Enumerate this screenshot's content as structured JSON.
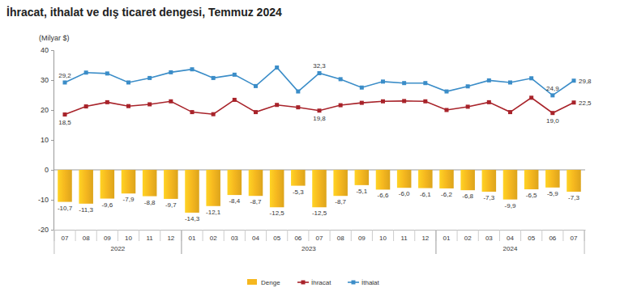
{
  "chart_data": {
    "type": "bar",
    "title": "İhracat, ithalat ve dış ticaret dengesi, Temmuz 2024",
    "y_label": "(Milyar $)",
    "categories": [
      "07",
      "08",
      "09",
      "10",
      "11",
      "12",
      "01",
      "02",
      "03",
      "04",
      "05",
      "06",
      "07",
      "08",
      "09",
      "10",
      "11",
      "12",
      "01",
      "02",
      "03",
      "04",
      "05",
      "06",
      "07"
    ],
    "category_groups": [
      {
        "label": "2022",
        "from": 0,
        "to": 5
      },
      {
        "label": "2023",
        "from": 6,
        "to": 17
      },
      {
        "label": "2024",
        "from": 18,
        "to": 24
      }
    ],
    "ylim": [
      -20,
      40
    ],
    "yticks": [
      -20,
      -10,
      0,
      10,
      20,
      30,
      40
    ],
    "grid": false,
    "legend": "bottom",
    "data_labels": true,
    "series": [
      {
        "name": "Denge",
        "type": "bar",
        "color": "#f5b71f",
        "values": [
          -10.7,
          -11.3,
          -9.6,
          -7.9,
          -8.8,
          -9.7,
          -14.3,
          -12.1,
          -8.4,
          -8.7,
          -12.5,
          -5.3,
          -12.5,
          -8.7,
          -5.1,
          -6.6,
          -6.0,
          -6.1,
          -6.2,
          -6.8,
          -7.3,
          -9.9,
          -6.5,
          -5.9,
          -7.3
        ],
        "value_labels": [
          "-10,7",
          "-11,3",
          "-9,6",
          "-7,9",
          "-8,8",
          "-9,7",
          "-14,3",
          "-12,1",
          "-8,4",
          "-8,7",
          "-12,5",
          "-5,3",
          "-12,5",
          "-8,7",
          "-5,1",
          "-6,6",
          "-6,0",
          "-6,1",
          "-6,2",
          "-6,8",
          "-7,3",
          "-9,9",
          "-6,5",
          "-5,9",
          "-7,3"
        ]
      },
      {
        "name": "İhracat",
        "type": "line",
        "color": "#a8232a",
        "marker": "square",
        "values": [
          18.5,
          21.2,
          22.6,
          21.3,
          21.9,
          22.9,
          19.3,
          18.6,
          23.4,
          19.3,
          21.7,
          20.9,
          19.8,
          21.6,
          22.4,
          22.9,
          23.0,
          22.9,
          20.0,
          21.1,
          22.6,
          19.3,
          24.1,
          19.0,
          22.5
        ],
        "value_labels": [
          "18,5",
          null,
          null,
          null,
          null,
          null,
          null,
          null,
          null,
          null,
          null,
          null,
          "19,8",
          null,
          null,
          null,
          null,
          null,
          null,
          null,
          null,
          null,
          null,
          "19,0",
          "22,5"
        ]
      },
      {
        "name": "İthalat",
        "type": "line",
        "color": "#3b8dc8",
        "marker": "square",
        "values": [
          29.2,
          32.5,
          32.2,
          29.2,
          30.7,
          32.6,
          33.6,
          30.7,
          31.8,
          28.0,
          34.2,
          26.2,
          32.3,
          30.3,
          27.5,
          29.5,
          29.0,
          29.0,
          26.2,
          27.9,
          29.9,
          29.2,
          30.6,
          24.9,
          29.8
        ],
        "value_labels": [
          "29,2",
          null,
          null,
          null,
          null,
          null,
          null,
          null,
          null,
          null,
          null,
          null,
          "32,3",
          null,
          null,
          null,
          null,
          null,
          null,
          null,
          null,
          null,
          null,
          "24,9",
          "29,8"
        ]
      }
    ]
  }
}
